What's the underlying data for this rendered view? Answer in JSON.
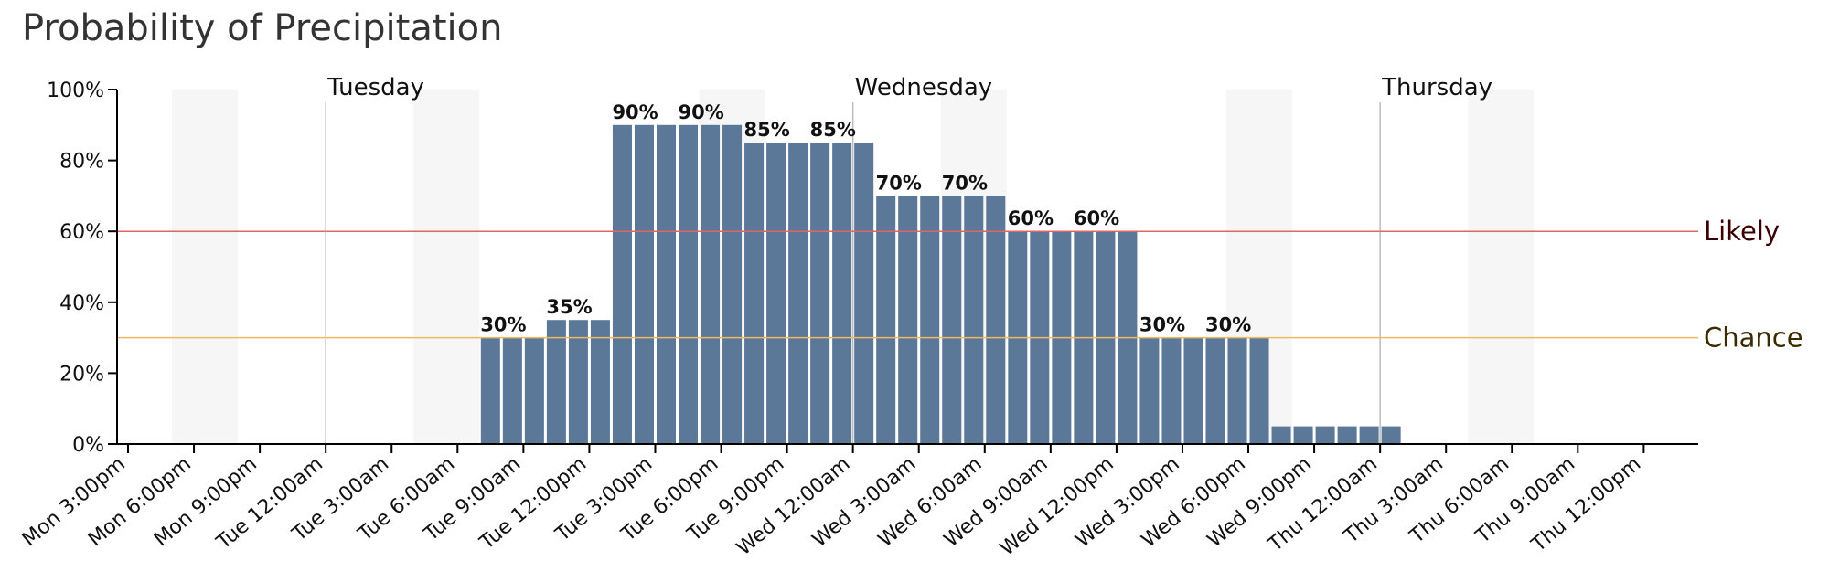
{
  "chart_data": {
    "type": "bar",
    "title": "Probability of Precipitation",
    "xlabel": "",
    "ylabel": "",
    "ylim": [
      0,
      100
    ],
    "yticks": [
      "0%",
      "20%",
      "40%",
      "60%",
      "80%",
      "100%"
    ],
    "x_tick_labels": [
      "Mon 3:00pm",
      "Mon 6:00pm",
      "Mon 9:00pm",
      "Tue 12:00am",
      "Tue 3:00am",
      "Tue 6:00am",
      "Tue 9:00am",
      "Tue 12:00pm",
      "Tue 3:00pm",
      "Tue 6:00pm",
      "Tue 9:00pm",
      "Wed 12:00am",
      "Wed 3:00am",
      "Wed 6:00am",
      "Wed 9:00am",
      "Wed 12:00pm",
      "Wed 3:00pm",
      "Wed 6:00pm",
      "Wed 9:00pm",
      "Thu 12:00am",
      "Thu 3:00am",
      "Thu 6:00am",
      "Thu 9:00am",
      "Thu 12:00pm"
    ],
    "day_labels": [
      "Tuesday",
      "Wednesday",
      "Thursday"
    ],
    "hourly_values": [
      0,
      0,
      0,
      0,
      0,
      0,
      0,
      0,
      0,
      0,
      0,
      0,
      0,
      0,
      0,
      0,
      30,
      30,
      30,
      35,
      35,
      35,
      90,
      90,
      90,
      90,
      90,
      90,
      85,
      85,
      85,
      85,
      85,
      85,
      70,
      70,
      70,
      70,
      70,
      70,
      60,
      60,
      60,
      60,
      60,
      60,
      30,
      30,
      30,
      30,
      30,
      30,
      5,
      5,
      5,
      5,
      5,
      5,
      0,
      0,
      0,
      0,
      0,
      0,
      0,
      0,
      0,
      0,
      0,
      0,
      0,
      0,
      0,
      0,
      0,
      0,
      0,
      0,
      0,
      0,
      0,
      0
    ],
    "value_labels": [
      "30%",
      "35%",
      "90%",
      "90%",
      "85%",
      "85%",
      "70%",
      "70%",
      "60%",
      "60%",
      "30%",
      "30%"
    ],
    "thresholds": [
      {
        "name": "Likely",
        "value": 60,
        "color": "#e06666",
        "text_color": "#3a0000"
      },
      {
        "name": "Chance",
        "value": 30,
        "color": "#f0b860",
        "text_color": "#3a2a00"
      }
    ],
    "bar_color": "#5b7899",
    "grid": false
  }
}
